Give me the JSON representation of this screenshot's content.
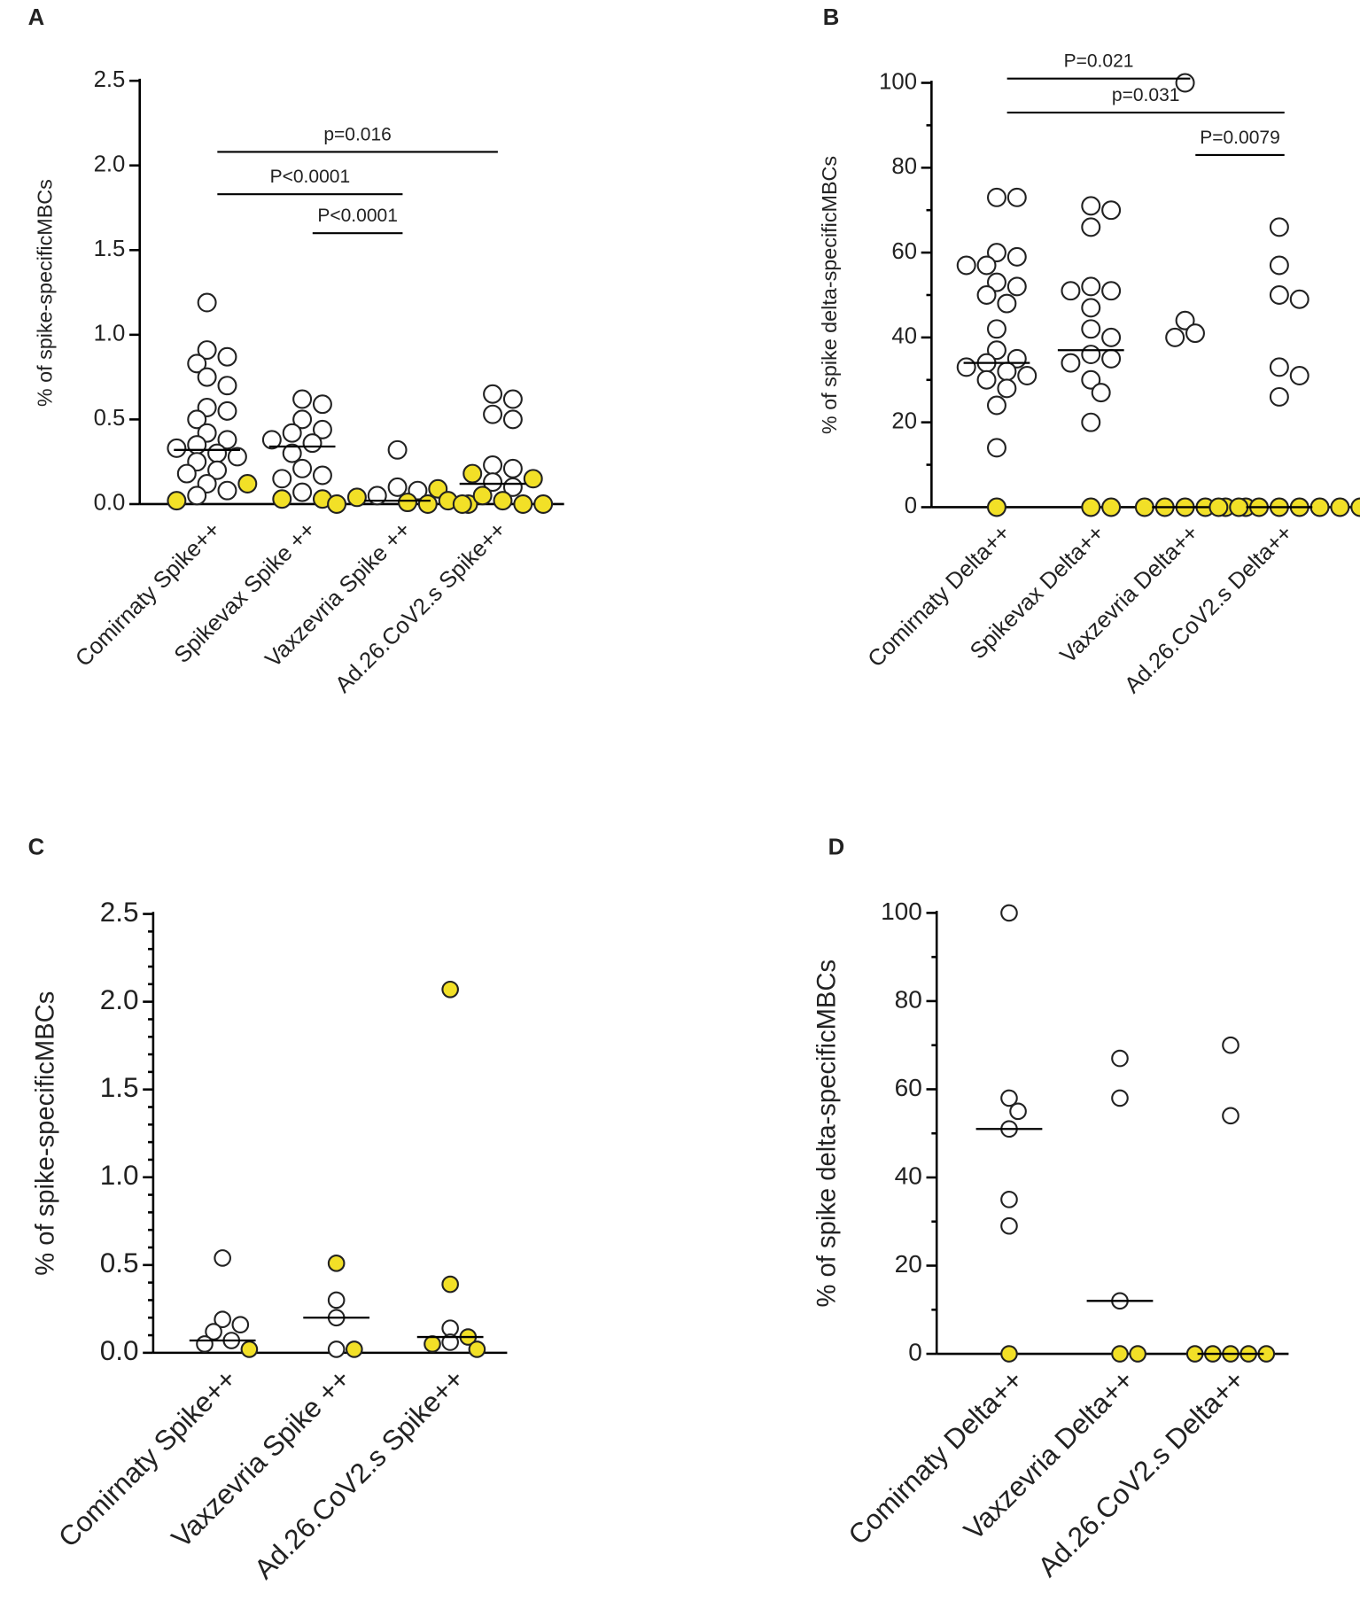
{
  "chart_data": [
    {
      "type": "dotplot",
      "label": "A",
      "ylabel": "% of spike-specificMBCs",
      "categories": [
        "Comirnaty Spike++",
        "Spikevax Spike ++",
        "Vaxzevria Spike ++",
        "Ad.26.CoV2.s Spike++"
      ],
      "open_values": [
        [
          1.19,
          0.91,
          0.87,
          0.83,
          0.75,
          0.7,
          0.57,
          0.55,
          0.5,
          0.42,
          0.38,
          0.35,
          0.33,
          0.3,
          0.28,
          0.25,
          0.2,
          0.18,
          0.12,
          0.08,
          0.05
        ],
        [
          0.62,
          0.59,
          0.5,
          0.44,
          0.42,
          0.38,
          0.36,
          0.3,
          0.21,
          0.17,
          0.15,
          0.07
        ],
        [
          0.32,
          0.1,
          0.08,
          0.05
        ],
        [
          0.65,
          0.62,
          0.53,
          0.5,
          0.23,
          0.21,
          0.13,
          0.1
        ]
      ],
      "filled_values": [
        [
          0.12,
          0.02
        ],
        [
          0.03,
          0.03
        ],
        [
          0.09,
          0.04,
          0.02,
          0.01,
          0,
          0,
          0
        ],
        [
          0.18,
          0.15,
          0.05,
          0.02,
          0,
          0,
          0
        ]
      ],
      "open_color": "#ffffff",
      "filled_color": "#f2e027",
      "medians": [
        0.32,
        0.34,
        0.02,
        0.12
      ],
      "ylim": [
        0,
        2.5
      ],
      "yticks": [
        {
          "value": 0,
          "label": "0.0"
        },
        {
          "value": 0.5,
          "label": "0.5"
        },
        {
          "value": 1,
          "label": "1.0"
        },
        {
          "value": 1.5,
          "label": "1.5"
        },
        {
          "value": 2,
          "label": "2.0"
        },
        {
          "value": 2.5,
          "label": "2.5"
        }
      ],
      "annotations": [
        {
          "text": "p=0.016",
          "from": 0,
          "to": 3,
          "value": 2.08
        },
        {
          "text": "P<0.0001",
          "from": 0,
          "to": 2,
          "value": 1.83
        },
        {
          "text": "P<0.0001",
          "from": 1,
          "to": 2,
          "value": 1.6
        }
      ]
    },
    {
      "type": "dotplot",
      "label": "B",
      "ylabel": "% of spike delta-specificMBCs",
      "categories": [
        "Comirnaty Delta++",
        "Spikevax Delta++",
        "Vaxzevria Delta++",
        "Ad.26.CoV2.s Delta++"
      ],
      "open_values": [
        [
          73,
          73,
          60,
          59,
          57,
          57,
          53,
          52,
          50,
          48,
          42,
          37,
          35,
          34,
          33,
          32,
          31,
          30,
          28,
          24,
          14
        ],
        [
          71,
          70,
          66,
          52,
          51,
          51,
          47,
          42,
          40,
          36,
          35,
          34,
          30,
          27,
          20
        ],
        [
          100,
          44,
          41,
          40
        ],
        [
          66,
          57,
          50,
          49,
          33,
          31,
          26
        ]
      ],
      "filled_values": [
        [
          0
        ],
        [
          0,
          0
        ],
        [
          0,
          0,
          0,
          0,
          0,
          0
        ],
        [
          0,
          0,
          0,
          0,
          0,
          0,
          0,
          0
        ]
      ],
      "open_color": "#ffffff",
      "filled_color": "#f2e027",
      "medians": [
        34,
        37,
        0,
        0
      ],
      "ylim": [
        0,
        100
      ],
      "yticks": [
        0,
        20,
        40,
        60,
        80,
        100
      ],
      "minor_ticks": 1,
      "annotations": [
        {
          "text": "P=0.021",
          "from": 0,
          "to": 2,
          "value": 101
        },
        {
          "text": "p=0.031",
          "from": 0,
          "to": 3,
          "value": 93
        },
        {
          "text": "P=0.0079",
          "from": 2,
          "to": 3,
          "value": 83
        }
      ]
    },
    {
      "type": "dotplot",
      "label": "C",
      "ylabel": "% of spike-specificMBCs",
      "categories": [
        "Comirnaty Spike++",
        "Vaxzevria Spike ++",
        "Ad.26.CoV2.s Spike++"
      ],
      "open_values": [
        [
          0.54,
          0.19,
          0.16,
          0.12,
          0.07,
          0.05
        ],
        [
          0.3,
          0.2,
          0.02
        ],
        [
          0.14,
          0.06
        ]
      ],
      "filled_values": [
        [
          0.02
        ],
        [
          0.51,
          0.02
        ],
        [
          2.07,
          0.39,
          0.09,
          0.05,
          0.02
        ]
      ],
      "open_color": "#ffffff",
      "filled_color": "#f2e027",
      "medians": [
        0.07,
        0.2,
        0.09
      ],
      "ylim": [
        0,
        2.5
      ],
      "yticks": [
        {
          "value": 0,
          "label": "0.0"
        },
        {
          "value": 0.5,
          "label": "0.5"
        },
        {
          "value": 1,
          "label": "1.0"
        },
        {
          "value": 1.5,
          "label": "1.5"
        },
        {
          "value": 2,
          "label": "2.0"
        },
        {
          "value": 2.5,
          "label": "2.5"
        }
      ],
      "minor_ticks": 4,
      "annotations": []
    },
    {
      "type": "dotplot",
      "label": "D",
      "ylabel": "% of spike delta-specificMBCs",
      "categories": [
        "Comirnaty Delta++",
        "Vaxzevria Delta++",
        "Ad.26.CoV2.s Delta++"
      ],
      "open_values": [
        [
          100,
          58,
          55,
          51,
          35,
          29
        ],
        [
          67,
          58,
          12
        ],
        [
          70,
          54
        ]
      ],
      "filled_values": [
        [
          0
        ],
        [
          0,
          0
        ],
        [
          0,
          0,
          0,
          0,
          0
        ]
      ],
      "open_color": "#ffffff",
      "filled_color": "#f2e027",
      "medians": [
        51,
        12,
        0
      ],
      "ylim": [
        0,
        100
      ],
      "yticks": [
        0,
        20,
        40,
        60,
        80,
        100
      ],
      "minor_ticks": 1,
      "annotations": []
    }
  ]
}
